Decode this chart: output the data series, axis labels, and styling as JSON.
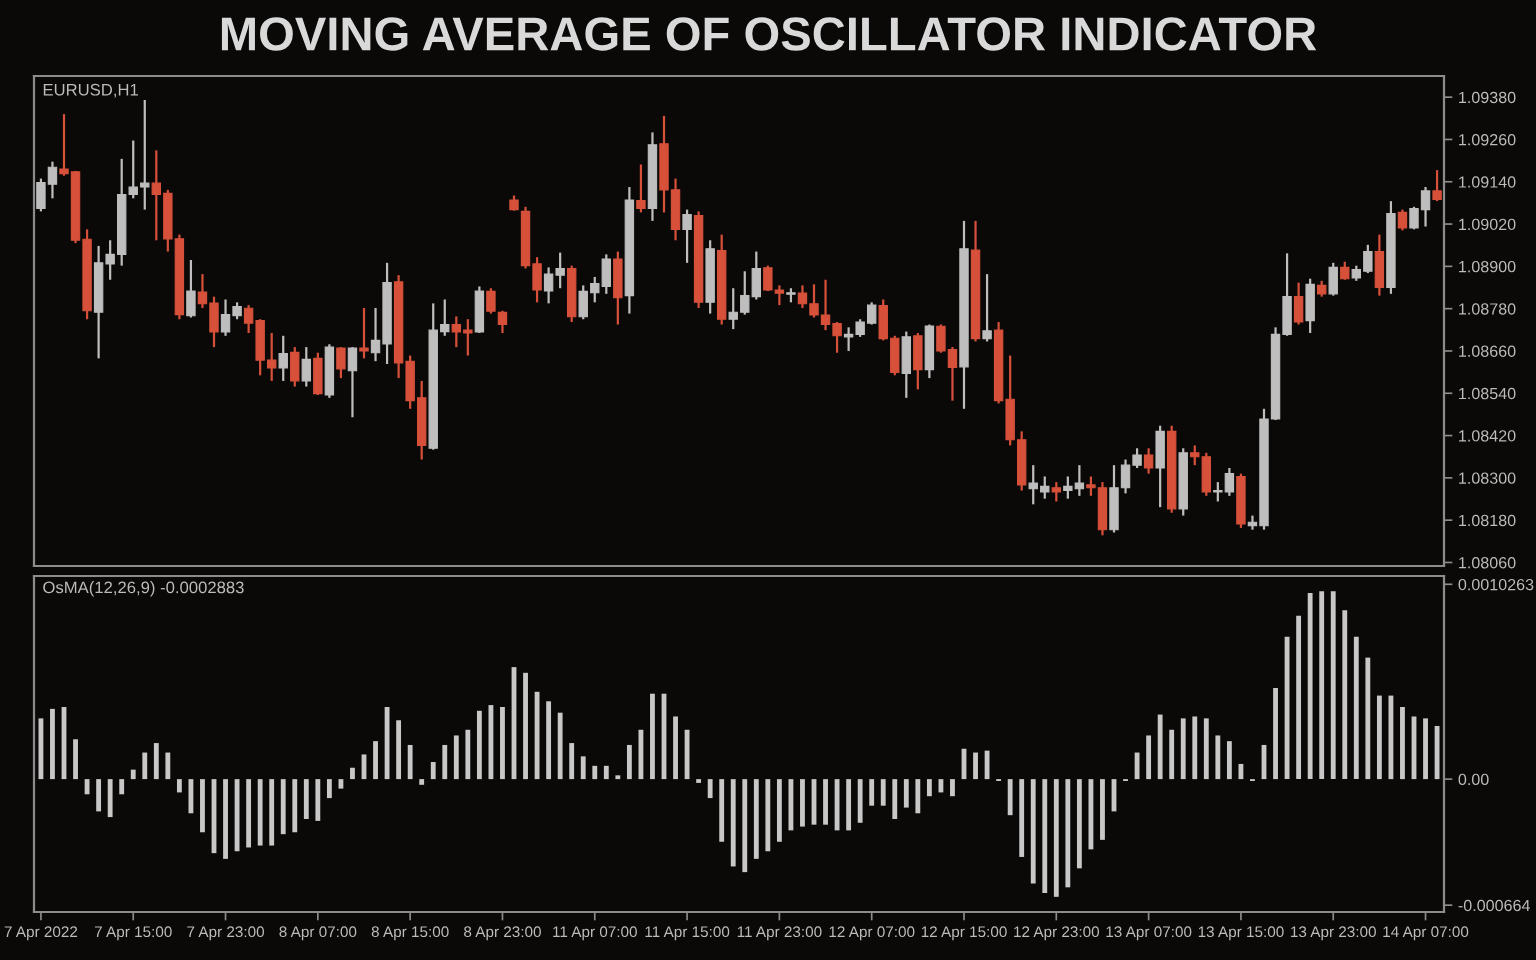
{
  "chart_data": [
    {
      "type": "candlestick",
      "title": "MOVING AVERAGE OF OSCILLATOR INDICATOR",
      "subtitle": "EURUSD,H1",
      "categories": [
        null,
        null,
        null,
        null,
        null,
        null,
        null,
        null,
        null,
        null,
        null,
        null,
        null,
        null,
        null,
        null,
        null,
        null,
        null,
        null,
        null,
        null,
        null,
        null,
        null,
        null,
        null,
        null,
        null,
        null,
        null,
        null,
        null,
        null,
        null,
        null,
        null,
        null,
        null,
        null,
        null,
        null,
        null,
        null,
        null,
        null,
        null,
        null,
        null,
        null,
        null,
        null,
        null,
        null,
        null,
        null,
        null,
        null,
        null,
        null,
        null,
        null,
        null,
        null,
        null,
        null,
        null,
        null,
        null,
        null,
        null,
        null,
        null,
        null,
        null,
        null,
        null,
        null,
        null,
        null,
        null,
        null,
        null,
        null,
        null,
        null,
        null,
        null,
        null,
        null,
        null,
        null,
        null,
        null,
        null,
        null,
        null,
        null,
        null,
        null,
        null,
        null,
        null,
        null,
        null,
        null,
        null,
        null,
        null,
        null,
        null,
        null,
        null,
        null,
        null,
        null,
        null,
        null,
        null,
        null,
        null,
        null
      ],
      "ohlc": [
        [
          1.09064,
          1.09149,
          1.09056,
          1.09138
        ],
        [
          1.09133,
          1.09197,
          1.09093,
          1.09181
        ],
        [
          1.09176,
          1.09332,
          1.09157,
          1.09163
        ],
        [
          1.09168,
          1.09171,
          1.08966,
          1.08974
        ],
        [
          1.08977,
          1.09005,
          1.0875,
          1.08774
        ],
        [
          1.0877,
          1.08958,
          1.08639,
          1.0891
        ],
        [
          1.08907,
          1.08974,
          1.08862,
          1.08934
        ],
        [
          1.08934,
          1.09205,
          1.08902,
          1.09104
        ],
        [
          1.09104,
          1.09257,
          1.09093,
          1.09125
        ],
        [
          1.09125,
          1.09372,
          1.09061,
          1.09136
        ],
        [
          1.09136,
          1.09229,
          1.08974,
          1.09104
        ],
        [
          1.09107,
          1.09117,
          1.08942,
          1.08978
        ],
        [
          1.08978,
          1.0899,
          1.0875,
          1.08763
        ],
        [
          1.0876,
          1.08918,
          1.08755,
          1.0883
        ],
        [
          1.08827,
          1.08878,
          1.08782,
          1.08794
        ],
        [
          1.08796,
          1.08814,
          1.08671,
          1.08714
        ],
        [
          1.08714,
          1.08806,
          1.08703,
          1.08763
        ],
        [
          1.0876,
          1.08798,
          1.0875,
          1.08786
        ],
        [
          1.08781,
          1.0879,
          1.08711,
          1.08739
        ],
        [
          1.08746,
          1.0875,
          1.08591,
          1.08634
        ],
        [
          1.08634,
          1.08711,
          1.08575,
          1.08612
        ],
        [
          1.08612,
          1.08703,
          1.08575,
          1.08653
        ],
        [
          1.08656,
          1.08671,
          1.08559,
          1.08575
        ],
        [
          1.08575,
          1.08671,
          1.08559,
          1.08636
        ],
        [
          1.08639,
          1.08655,
          1.08535,
          1.08539
        ],
        [
          1.08535,
          1.08679,
          1.08527,
          1.08671
        ],
        [
          1.08668,
          1.08671,
          1.08583,
          1.08609
        ],
        [
          1.08604,
          1.08671,
          1.08472,
          1.08668
        ],
        [
          1.08668,
          1.08782,
          1.08639,
          1.0866
        ],
        [
          1.08655,
          1.08782,
          1.08631,
          1.0869
        ],
        [
          1.0868,
          1.0891,
          1.08623,
          1.08854
        ],
        [
          1.08856,
          1.08875,
          1.08583,
          1.08626
        ],
        [
          1.08631,
          1.08647,
          1.08496,
          1.08519
        ],
        [
          1.08527,
          1.08575,
          1.08352,
          1.08392
        ],
        [
          1.08384,
          1.08795,
          1.0838,
          1.08719
        ],
        [
          1.08715,
          1.08806,
          1.08703,
          1.08735
        ],
        [
          1.08735,
          1.08758,
          1.08671,
          1.08714
        ],
        [
          1.08719,
          1.0875,
          1.08647,
          1.08711
        ],
        [
          1.08714,
          1.08843,
          1.08711,
          1.0883
        ],
        [
          1.08829,
          1.08838,
          1.08766,
          1.08773
        ],
        [
          1.0877,
          1.08774,
          1.08711,
          1.08735
        ],
        [
          1.09088,
          1.09101,
          1.09058,
          1.09061
        ],
        [
          1.09056,
          1.09069,
          1.08894,
          1.08902
        ],
        [
          1.08907,
          1.08926,
          1.08798,
          1.08833
        ],
        [
          1.0883,
          1.08897,
          1.08795,
          1.08878
        ],
        [
          1.08875,
          1.08939,
          1.08838,
          1.08894
        ],
        [
          1.08894,
          1.08902,
          1.08742,
          1.08757
        ],
        [
          1.08757,
          1.08846,
          1.0875,
          1.08829
        ],
        [
          1.08825,
          1.0887,
          1.08798,
          1.08851
        ],
        [
          1.08843,
          1.08934,
          1.08822,
          1.08921
        ],
        [
          1.08921,
          1.08942,
          1.08735,
          1.08811
        ],
        [
          1.08817,
          1.09125,
          1.08766,
          1.09088
        ],
        [
          1.09087,
          1.09189,
          1.09053,
          1.09064
        ],
        [
          1.09064,
          1.0928,
          1.09029,
          1.09245
        ],
        [
          1.09248,
          1.09327,
          1.09053,
          1.09117
        ],
        [
          1.09117,
          1.09149,
          1.08974,
          1.09005
        ],
        [
          1.09005,
          1.09061,
          1.0891,
          1.09047
        ],
        [
          1.09044,
          1.09056,
          1.08782,
          1.08798
        ],
        [
          1.08798,
          1.08974,
          1.08766,
          1.0895
        ],
        [
          1.08945,
          1.0899,
          1.08735,
          1.0875
        ],
        [
          1.0875,
          1.08838,
          1.08722,
          1.0877
        ],
        [
          1.0877,
          1.08886,
          1.08763,
          1.08817
        ],
        [
          1.08814,
          1.08942,
          1.08806,
          1.08894
        ],
        [
          1.08896,
          1.08902,
          1.0883,
          1.08833
        ],
        [
          1.08833,
          1.08846,
          1.0879,
          1.08824
        ],
        [
          1.08821,
          1.08838,
          1.08798,
          1.08825
        ],
        [
          1.08824,
          1.08846,
          1.08782,
          1.08794
        ],
        [
          1.08794,
          1.08849,
          1.08755,
          1.08762
        ],
        [
          1.08762,
          1.08862,
          1.08719,
          1.08735
        ],
        [
          1.08738,
          1.08742,
          1.08655,
          1.08703
        ],
        [
          1.087,
          1.08727,
          1.0866,
          1.08707
        ],
        [
          1.08707,
          1.0875,
          1.087,
          1.08742
        ],
        [
          1.08739,
          1.08798,
          1.08735,
          1.0879
        ],
        [
          1.08789,
          1.08806,
          1.0869,
          1.08695
        ],
        [
          1.08696,
          1.08703,
          1.08591,
          1.08599
        ],
        [
          1.08596,
          1.08715,
          1.08527,
          1.087
        ],
        [
          1.08703,
          1.08711,
          1.08551,
          1.08607
        ],
        [
          1.08607,
          1.08735,
          1.08583,
          1.08731
        ],
        [
          1.0873,
          1.08735,
          1.08655,
          1.0866
        ],
        [
          1.08664,
          1.08671,
          1.08519,
          1.08613
        ],
        [
          1.08615,
          1.09029,
          1.08496,
          1.0895
        ],
        [
          1.08946,
          1.09029,
          1.08687,
          1.08695
        ],
        [
          1.08695,
          1.08878,
          1.08687,
          1.08717
        ],
        [
          1.08719,
          1.08742,
          1.08511,
          1.08519
        ],
        [
          1.08523,
          1.08647,
          1.08392,
          1.08408
        ],
        [
          1.08408,
          1.08432,
          1.08264,
          1.0828
        ],
        [
          1.08269,
          1.08336,
          1.08225,
          1.08285
        ],
        [
          1.0826,
          1.08304,
          1.08241,
          1.08276
        ],
        [
          1.08272,
          1.08288,
          1.08233,
          1.0826
        ],
        [
          1.08264,
          1.08304,
          1.08241,
          1.08276
        ],
        [
          1.08269,
          1.08336,
          1.08249,
          1.08285
        ],
        [
          1.0828,
          1.08304,
          1.08249,
          1.08272
        ],
        [
          1.08272,
          1.08288,
          1.08137,
          1.08153
        ],
        [
          1.08153,
          1.08336,
          1.08145,
          1.08272
        ],
        [
          1.08272,
          1.08352,
          1.08256,
          1.08336
        ],
        [
          1.08336,
          1.08384,
          1.08328,
          1.08365
        ],
        [
          1.08365,
          1.08384,
          1.08312,
          1.08328
        ],
        [
          1.08328,
          1.08448,
          1.08217,
          1.08432
        ],
        [
          1.08432,
          1.08448,
          1.08201,
          1.08212
        ],
        [
          1.08212,
          1.08384,
          1.08193,
          1.08371
        ],
        [
          1.08371,
          1.08392,
          1.08336,
          1.0836
        ],
        [
          1.0836,
          1.08371,
          1.08249,
          1.0826
        ],
        [
          1.0826,
          1.08288,
          1.08233,
          1.08264
        ],
        [
          1.0826,
          1.08328,
          1.08249,
          1.08312
        ],
        [
          1.08304,
          1.08312,
          1.08158,
          1.08169
        ],
        [
          1.08164,
          1.08193,
          1.08153,
          1.08174
        ],
        [
          1.08164,
          1.08496,
          1.08153,
          1.08467
        ],
        [
          1.08467,
          1.08727,
          1.08464,
          1.08707
        ],
        [
          1.08707,
          1.08937,
          1.08703,
          1.08814
        ],
        [
          1.08814,
          1.08854,
          1.08735,
          1.08742
        ],
        [
          1.08746,
          1.08865,
          1.08711,
          1.08849
        ],
        [
          1.08846,
          1.08859,
          1.08814,
          1.08822
        ],
        [
          1.08822,
          1.0891,
          1.08817,
          1.08897
        ],
        [
          1.08897,
          1.08913,
          1.08862,
          1.08865
        ],
        [
          1.08867,
          1.08902,
          1.08859,
          1.08891
        ],
        [
          1.08886,
          1.08961,
          1.08881,
          1.08942
        ],
        [
          1.08942,
          1.0899,
          1.08817,
          1.0884
        ],
        [
          1.0884,
          1.09085,
          1.08822,
          1.0905
        ],
        [
          1.09053,
          1.09061,
          1.09002,
          1.09009
        ],
        [
          1.09009,
          1.09069,
          1.09005,
          1.09064
        ],
        [
          1.09061,
          1.09125,
          1.09013,
          1.09114
        ],
        [
          1.09114,
          1.09173,
          1.09085,
          1.0909
        ]
      ],
      "colors": [
        "#bebebe",
        "#bebebe",
        "#d6503a",
        "#d6503a",
        "#d6503a",
        "#bebebe",
        "#bebebe",
        "#bebebe",
        "#bebebe",
        "#bebebe",
        "#d6503a",
        "#d6503a",
        "#d6503a",
        "#bebebe",
        "#d6503a",
        "#d6503a",
        "#bebebe",
        "#bebebe",
        "#d6503a",
        "#d6503a",
        "#d6503a",
        "#bebebe",
        "#d6503a",
        "#bebebe",
        "#d6503a",
        "#bebebe",
        "#d6503a",
        "#bebebe",
        "#d6503a",
        "#bebebe",
        "#bebebe",
        "#d6503a",
        "#d6503a",
        "#d6503a",
        "#bebebe",
        "#bebebe",
        "#d6503a",
        "#d6503a",
        "#bebebe",
        "#d6503a",
        "#d6503a",
        "#d6503a",
        "#d6503a",
        "#d6503a",
        "#bebebe",
        "#bebebe",
        "#d6503a",
        "#bebebe",
        "#bebebe",
        "#bebebe",
        "#d6503a",
        "#bebebe",
        "#d6503a",
        "#bebebe",
        "#d6503a",
        "#d6503a",
        "#bebebe",
        "#d6503a",
        "#bebebe",
        "#d6503a",
        "#bebebe",
        "#bebebe",
        "#bebebe",
        "#d6503a",
        "#d6503a",
        "#bebebe",
        "#d6503a",
        "#d6503a",
        "#d6503a",
        "#d6503a",
        "#bebebe",
        "#bebebe",
        "#bebebe",
        "#d6503a",
        "#d6503a",
        "#bebebe",
        "#d6503a",
        "#bebebe",
        "#d6503a",
        "#d6503a",
        "#bebebe",
        "#d6503a",
        "#bebebe",
        "#d6503a",
        "#d6503a",
        "#d6503a",
        "#bebebe",
        "#bebebe",
        "#d6503a",
        "#bebebe",
        "#bebebe",
        "#d6503a",
        "#d6503a",
        "#bebebe",
        "#bebebe",
        "#bebebe",
        "#d6503a",
        "#bebebe",
        "#d6503a",
        "#bebebe",
        "#d6503a",
        "#d6503a",
        "#bebebe",
        "#bebebe",
        "#d6503a",
        "#bebebe",
        "#bebebe",
        "#bebebe",
        "#bebebe",
        "#d6503a",
        "#bebebe",
        "#d6503a",
        "#bebebe",
        "#d6503a",
        "#bebebe",
        "#bebebe",
        "#d6503a",
        "#bebebe",
        "#d6503a",
        "#bebebe",
        "#bebebe",
        "#d6503a"
      ],
      "ylim": [
        1.0805,
        1.0944
      ],
      "yticks": [
        {
          "value": 1.0806,
          "label": "1.08060"
        },
        {
          "value": 1.0818,
          "label": "1.08180"
        },
        {
          "value": 1.083,
          "label": "1.08300"
        },
        {
          "value": 1.0842,
          "label": "1.08420"
        },
        {
          "value": 1.0854,
          "label": "1.08540"
        },
        {
          "value": 1.0866,
          "label": "1.08660"
        },
        {
          "value": 1.0878,
          "label": "1.08780"
        },
        {
          "value": 1.089,
          "label": "1.08900"
        },
        {
          "value": 1.0902,
          "label": "1.09020"
        },
        {
          "value": 1.0914,
          "label": "1.09140"
        },
        {
          "value": 1.0926,
          "label": "1.09260"
        },
        {
          "value": 1.0938,
          "label": "1.09380"
        }
      ]
    },
    {
      "type": "bar",
      "title": "OsMA(12,26,9) -0.0002883",
      "categories": [
        "7 Apr 2022",
        null,
        null,
        null,
        null,
        null,
        null,
        null,
        "7 Apr 15:00",
        null,
        null,
        null,
        null,
        null,
        null,
        null,
        "7 Apr 23:00",
        null,
        null,
        null,
        null,
        null,
        null,
        null,
        "8 Apr 07:00",
        null,
        null,
        null,
        null,
        null,
        null,
        null,
        "8 Apr 15:00",
        null,
        null,
        null,
        null,
        null,
        null,
        null,
        "8 Apr 23:00",
        null,
        null,
        null,
        null,
        null,
        null,
        null,
        "11 Apr 07:00",
        null,
        null,
        null,
        null,
        null,
        null,
        null,
        "11 Apr 15:00",
        null,
        null,
        null,
        null,
        null,
        null,
        null,
        "11 Apr 23:00",
        null,
        null,
        null,
        null,
        null,
        null,
        null,
        "12 Apr 07:00",
        null,
        null,
        null,
        null,
        null,
        null,
        null,
        "12 Apr 15:00",
        null,
        null,
        null,
        null,
        null,
        null,
        null,
        "12 Apr 23:00",
        null,
        null,
        null,
        null,
        null,
        null,
        null,
        "13 Apr 07:00",
        null,
        null,
        null,
        null,
        null,
        null,
        null,
        "13 Apr 15:00",
        null,
        null,
        null,
        null,
        null,
        null,
        null,
        "13 Apr 23:00",
        null,
        null,
        null,
        null,
        null,
        null,
        null,
        "14 Apr 07:00",
        null
      ],
      "values": [
        0.00032,
        0.00037,
        0.00038,
        0.00021,
        -8e-05,
        -0.00017,
        -0.0002,
        -8e-05,
        5e-05,
        0.00014,
        0.00019,
        0.00014,
        -7e-05,
        -0.00018,
        -0.00028,
        -0.00039,
        -0.00042,
        -0.00038,
        -0.00036,
        -0.00035,
        -0.00035,
        -0.00029,
        -0.00028,
        -0.00021,
        -0.00022,
        -0.0001,
        -5e-05,
        6e-05,
        0.00013,
        0.0002,
        0.00038,
        0.00031,
        0.00018,
        -3e-05,
        9e-05,
        0.00018,
        0.00023,
        0.00026,
        0.00036,
        0.00039,
        0.00038,
        0.00059,
        0.00056,
        0.00046,
        0.00041,
        0.00035,
        0.00019,
        0.00012,
        7e-05,
        7e-05,
        2e-05,
        0.00018,
        0.00026,
        0.00045,
        0.00045,
        0.00033,
        0.00026,
        -2e-05,
        -0.0001,
        -0.00033,
        -0.00046,
        -0.00049,
        -0.00042,
        -0.00038,
        -0.00033,
        -0.00027,
        -0.00025,
        -0.00024,
        -0.00024,
        -0.00027,
        -0.00027,
        -0.00023,
        -0.00014,
        -0.00014,
        -0.00021,
        -0.00015,
        -0.00018,
        -9e-05,
        -7e-05,
        -9e-05,
        0.00016,
        0.00014,
        0.00015,
        -1e-05,
        -0.00019,
        -0.00041,
        -0.00055,
        -0.0006,
        -0.00062,
        -0.00057,
        -0.00047,
        -0.00037,
        -0.00032,
        -0.00017,
        -1e-05,
        0.00014,
        0.00023,
        0.00034,
        0.00026,
        0.00032,
        0.00033,
        0.00032,
        0.00023,
        0.0002,
        8e-05,
        -1e-05,
        0.00018,
        0.00048,
        0.00075,
        0.00086,
        0.00098,
        0.00099,
        0.00099,
        0.00089,
        0.00075,
        0.00064,
        0.00044,
        0.00044,
        0.00038,
        0.00033,
        0.00032,
        0.00028
      ],
      "color": "#c8c8c8",
      "ylim": [
        -0.0007,
        0.00107
      ],
      "yticks": [
        -0.000664,
        {
          "value": 0,
          "label": "0.00"
        },
        0.0010263
      ]
    }
  ]
}
